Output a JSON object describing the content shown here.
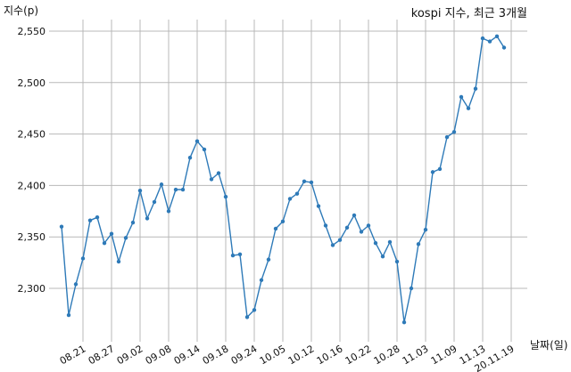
{
  "chart_data": {
    "type": "line",
    "title": "kospi 지수, 최근 3개월",
    "ylabel": "지수(p)",
    "xlabel": "날짜(일)",
    "ylim": [
      2250,
      2560
    ],
    "yticks": [
      2300,
      2350,
      2400,
      2450,
      2500,
      2550
    ],
    "ytick_labels": [
      "2,300",
      "2,350",
      "2,400",
      "2,450",
      "2,500",
      "2,550"
    ],
    "xtick_labels": [
      "08.21",
      "08.27",
      "09.02",
      "09.08",
      "09.14",
      "09.18",
      "09.24",
      "10.05",
      "10.12",
      "10.16",
      "10.22",
      "10.28",
      "11.03",
      "11.09",
      "11.13",
      "20.11.19"
    ],
    "xtick_index": [
      3,
      7,
      11,
      15,
      19,
      23,
      27,
      31,
      35,
      39,
      43,
      47,
      51,
      55,
      59,
      63
    ],
    "grid": true,
    "color": "#2e7ab8",
    "series": [
      {
        "values": [
          2360,
          2274,
          2304,
          2329,
          2366,
          2369,
          2344,
          2353,
          2326,
          2349,
          2364,
          2395,
          2368,
          2384,
          2401,
          2375,
          2396,
          2396,
          2427,
          2443,
          2435,
          2406,
          2412,
          2389,
          2332,
          2333,
          2272,
          2279,
          2308,
          2328,
          2358,
          2365,
          2387,
          2392,
          2404,
          2403,
          2380,
          2361,
          2342,
          2347,
          2359,
          2371,
          2355,
          2361,
          2344,
          2331,
          2345,
          2326,
          2267,
          2300,
          2343,
          2357,
          2413,
          2416,
          2447,
          2452,
          2486,
          2475,
          2494,
          2543,
          2540,
          2545,
          2534
        ]
      }
    ]
  }
}
